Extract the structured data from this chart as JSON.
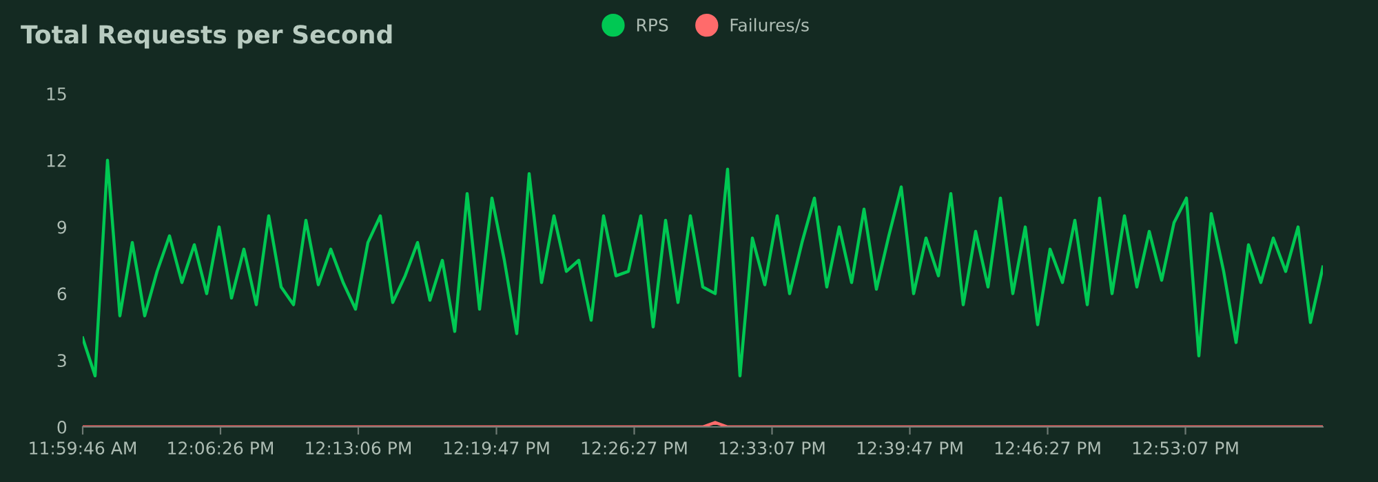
{
  "chart_data": {
    "type": "line",
    "title": "Total Requests per Second",
    "x": [
      11.9961,
      12.0061,
      12.0161,
      12.0261,
      12.0361,
      12.0461,
      12.0561,
      12.0661,
      12.0761,
      12.0861,
      12.0961,
      12.1061,
      12.1161,
      12.1261,
      12.1361,
      12.1461,
      12.1561,
      12.1661,
      12.1761,
      12.1861,
      12.1961,
      12.2061,
      12.2161,
      12.2261,
      12.2361,
      12.2461,
      12.2561,
      12.2661,
      12.2761,
      12.2861,
      12.2961,
      12.3061,
      12.3161,
      12.3261,
      12.3361,
      12.3461,
      12.3561,
      12.3661,
      12.3761,
      12.3861,
      12.3961,
      12.4061,
      12.4161,
      12.4261,
      12.4361,
      12.4461,
      12.4561,
      12.4661,
      12.4761,
      12.4861,
      12.4961,
      12.5061,
      12.5161,
      12.5261,
      12.5361,
      12.5461,
      12.5561,
      12.5661,
      12.5761,
      12.5861,
      12.5961,
      12.6061,
      12.6161,
      12.6261,
      12.6361,
      12.6461,
      12.6561,
      12.6661,
      12.6761,
      12.6861,
      12.6961,
      12.7061,
      12.7161,
      12.7261,
      12.7361,
      12.7461,
      12.7561,
      12.7661,
      12.7761,
      12.7861,
      12.7961,
      12.8061,
      12.8161,
      12.8261,
      12.8361,
      12.8461,
      12.8561,
      12.8661,
      12.8761,
      12.8861,
      12.8961,
      12.9061,
      12.9161,
      12.9261,
      12.9361,
      12.9461,
      12.9561,
      12.9661,
      12.9761,
      12.9861,
      12.9961
    ],
    "series": [
      {
        "name": "RPS",
        "color": "#00c853",
        "values": [
          4.0,
          2.3,
          12.0,
          5.0,
          8.3,
          5.0,
          7.0,
          8.6,
          6.5,
          8.2,
          6.0,
          9.0,
          5.8,
          8.0,
          5.5,
          9.5,
          6.3,
          5.5,
          9.3,
          6.4,
          8.0,
          6.5,
          5.3,
          8.3,
          9.5,
          5.6,
          6.8,
          8.3,
          5.7,
          7.5,
          4.3,
          10.5,
          5.3,
          10.3,
          7.5,
          4.2,
          11.4,
          6.5,
          9.5,
          7.0,
          7.5,
          4.8,
          9.5,
          6.8,
          7.0,
          9.5,
          4.5,
          9.3,
          5.6,
          9.5,
          6.3,
          6.0,
          11.6,
          2.3,
          8.5,
          6.4,
          9.5,
          6.0,
          8.3,
          10.3,
          6.3,
          9.0,
          6.5,
          9.8,
          6.2,
          8.6,
          10.8,
          6.0,
          8.5,
          6.8,
          10.5,
          5.5,
          8.8,
          6.3,
          10.3,
          6.0,
          9.0,
          4.6,
          8.0,
          6.5,
          9.3,
          5.5,
          10.3,
          6.0,
          9.5,
          6.3,
          8.8,
          6.6,
          9.2,
          10.3,
          3.2,
          9.6,
          7.0,
          3.8,
          8.2,
          6.5,
          8.5,
          7.0,
          9.0,
          4.7,
          7.2
        ]
      },
      {
        "name": "Failures/s",
        "color": "#ff6b6b",
        "values": [
          0,
          0,
          0,
          0,
          0,
          0,
          0,
          0,
          0,
          0,
          0,
          0,
          0,
          0,
          0,
          0,
          0,
          0,
          0,
          0,
          0,
          0,
          0,
          0,
          0,
          0,
          0,
          0,
          0,
          0,
          0,
          0,
          0,
          0,
          0,
          0,
          0,
          0,
          0,
          0,
          0,
          0,
          0,
          0,
          0,
          0,
          0,
          0,
          0,
          0,
          0,
          0.2,
          0,
          0,
          0,
          0,
          0,
          0,
          0,
          0,
          0,
          0,
          0,
          0,
          0,
          0,
          0,
          0,
          0,
          0,
          0,
          0,
          0,
          0,
          0,
          0,
          0,
          0,
          0,
          0,
          0,
          0,
          0,
          0,
          0,
          0,
          0,
          0,
          0,
          0,
          0,
          0,
          0,
          0,
          0,
          0,
          0,
          0,
          0,
          0,
          0
        ]
      }
    ],
    "xlim": [
      11.9961,
      12.9961
    ],
    "xticks": [
      {
        "value": 11.99611,
        "label": "11:59:46 AM"
      },
      {
        "value": 12.10722,
        "label": "12:06:26 PM"
      },
      {
        "value": 12.21833,
        "label": "12:13:06 PM"
      },
      {
        "value": 12.32972,
        "label": "12:19:47 PM"
      },
      {
        "value": 12.44083,
        "label": "12:26:27 PM"
      },
      {
        "value": 12.55194,
        "label": "12:33:07 PM"
      },
      {
        "value": 12.66306,
        "label": "12:39:47 PM"
      },
      {
        "value": 12.77417,
        "label": "12:46:27 PM"
      },
      {
        "value": 12.88528,
        "label": "12:53:07 PM"
      }
    ],
    "ylim": [
      0,
      15
    ],
    "yticks": [
      0,
      3,
      6,
      9,
      12,
      15
    ],
    "grid": false,
    "legend": "top",
    "line_style": "solid"
  }
}
